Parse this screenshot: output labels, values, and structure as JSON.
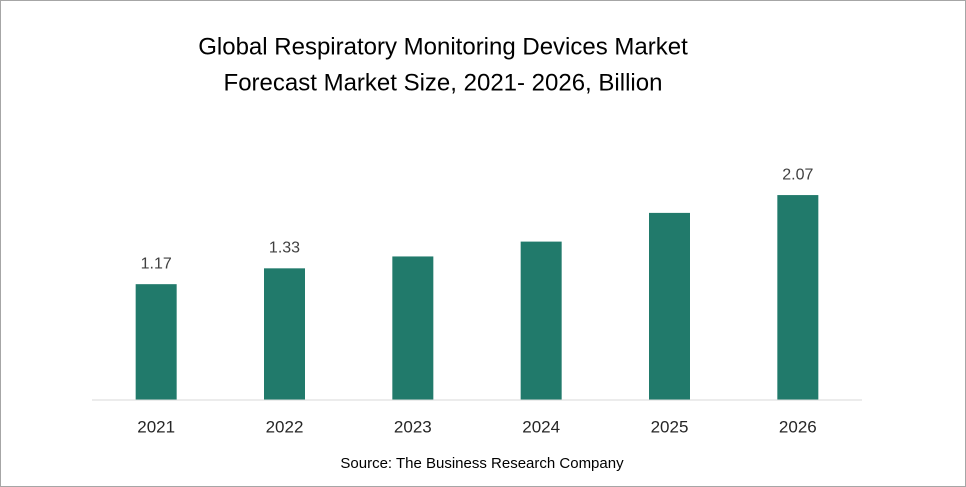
{
  "chart_data": {
    "type": "bar",
    "title": [
      "Global Respiratory Monitoring Devices Market",
      "Forecast Market Size, 2021- 2026, Billion"
    ],
    "categories": [
      "2021",
      "2022",
      "2023",
      "2024",
      "2025",
      "2026"
    ],
    "values": [
      1.17,
      1.33,
      1.45,
      1.6,
      1.89,
      2.07
    ],
    "data_labels": [
      true,
      true,
      false,
      false,
      false,
      true
    ],
    "color": "#217a6b",
    "ylim": [
      0,
      2.5
    ],
    "source": "Source: The Business Research Company"
  }
}
